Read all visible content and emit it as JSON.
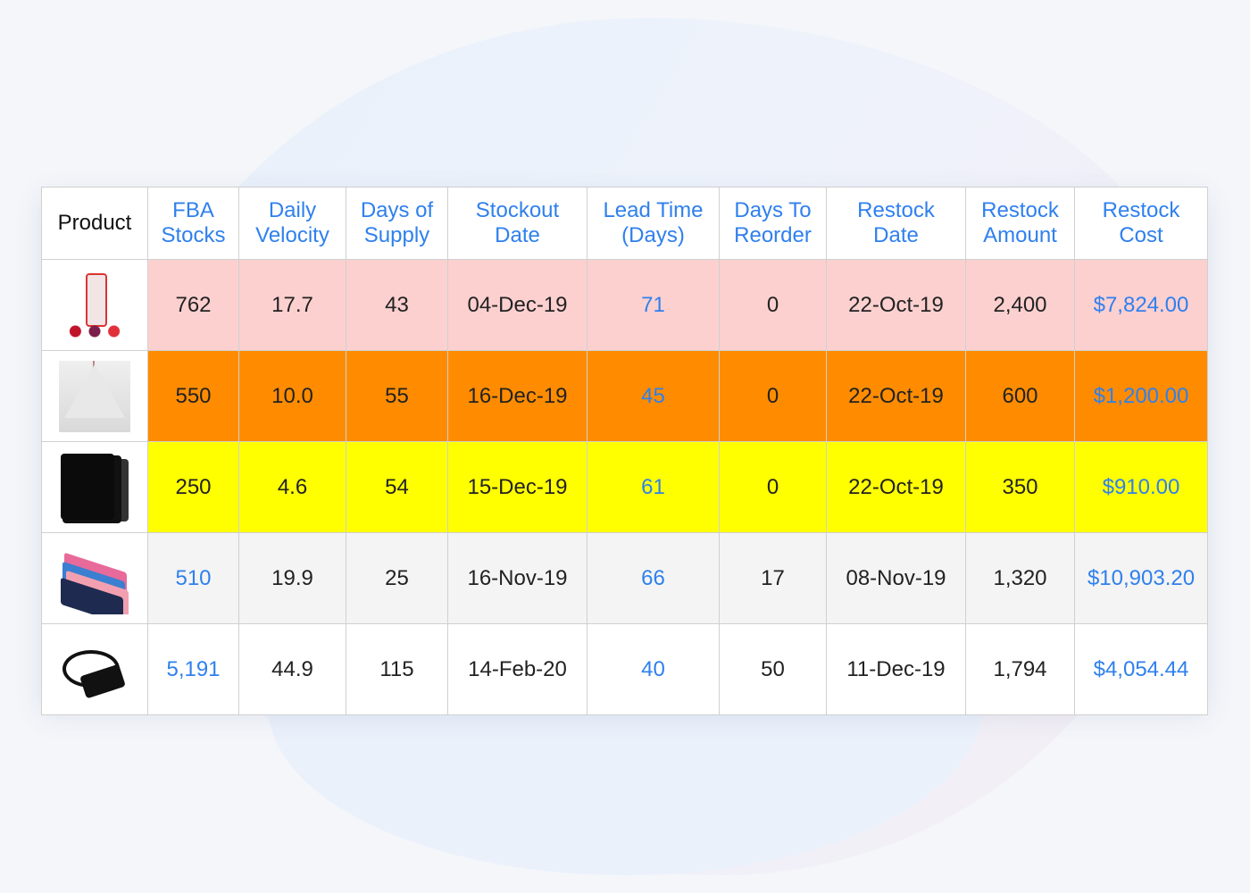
{
  "table": {
    "headers": [
      {
        "line1": "Product",
        "line2": ""
      },
      {
        "line1": "FBA",
        "line2": "Stocks"
      },
      {
        "line1": "Daily",
        "line2": "Velocity"
      },
      {
        "line1": "Days of",
        "line2": "Supply"
      },
      {
        "line1": "Stockout",
        "line2": "Date"
      },
      {
        "line1": "Lead Time",
        "line2": "(Days)"
      },
      {
        "line1": "Days To",
        "line2": "Reorder"
      },
      {
        "line1": "Restock",
        "line2": "Date"
      },
      {
        "line1": "Restock",
        "line2": "Amount"
      },
      {
        "line1": "Restock",
        "line2": "Cost"
      }
    ],
    "rows": [
      {
        "image": "water-bottle-with-fruit",
        "fba_stocks": "762",
        "daily_velocity": "17.7",
        "days_of_supply": "43",
        "stockout_date": "04-Dec-19",
        "lead_time": "71",
        "days_to_reorder": "0",
        "restock_date": "22-Oct-19",
        "restock_amount": "2,400",
        "restock_cost": "$7,824.00",
        "row_color": "#fdd0d0"
      },
      {
        "image": "mesh-bag",
        "fba_stocks": "550",
        "daily_velocity": "10.0",
        "days_of_supply": "55",
        "stockout_date": "16-Dec-19",
        "lead_time": "45",
        "days_to_reorder": "0",
        "restock_date": "22-Oct-19",
        "restock_amount": "600",
        "restock_cost": "$1,200.00",
        "row_color": "#ff8c00"
      },
      {
        "image": "black-case",
        "fba_stocks": "250",
        "daily_velocity": "4.6",
        "days_of_supply": "54",
        "stockout_date": "15-Dec-19",
        "lead_time": "61",
        "days_to_reorder": "0",
        "restock_date": "22-Oct-19",
        "restock_amount": "350",
        "restock_cost": "$910.00",
        "row_color": "#ffff00"
      },
      {
        "image": "microfiber-cloths",
        "fba_stocks": "510",
        "daily_velocity": "19.9",
        "days_of_supply": "25",
        "stockout_date": "16-Nov-19",
        "lead_time": "66",
        "days_to_reorder": "17",
        "restock_date": "08-Nov-19",
        "restock_amount": "1,320",
        "restock_cost": "$10,903.20",
        "row_color": "#f4f4f4"
      },
      {
        "image": "power-adapter",
        "fba_stocks": "5,191",
        "daily_velocity": "44.9",
        "days_of_supply": "115",
        "stockout_date": "14-Feb-20",
        "lead_time": "40",
        "days_to_reorder": "50",
        "restock_date": "11-Dec-19",
        "restock_amount": "1,794",
        "restock_cost": "$4,054.44",
        "row_color": "#ffffff"
      }
    ]
  },
  "colors": {
    "link": "#2f80ed",
    "row_pink": "#fdd0d0",
    "row_orange": "#ff8c00",
    "row_yellow": "#ffff00"
  }
}
